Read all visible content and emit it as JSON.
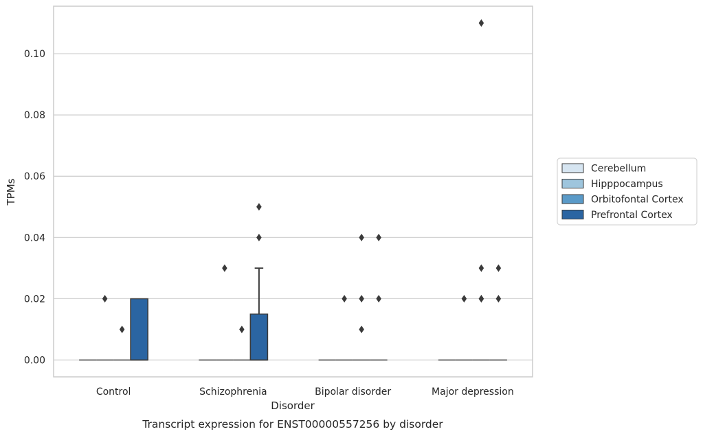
{
  "chart_data": {
    "type": "box",
    "title": "",
    "caption": "Transcript expression for ENST00000557256 by disorder",
    "xlabel": "Disorder",
    "ylabel": "TPMs",
    "ylim": [
      -0.0055,
      0.1155
    ],
    "yticks": [
      "0.00",
      "0.02",
      "0.04",
      "0.06",
      "0.08",
      "0.10"
    ],
    "ytick_values": [
      0,
      0.02,
      0.04,
      0.06,
      0.08,
      0.1
    ],
    "grid": "horizontal",
    "legend_position": "right",
    "categories": [
      "Control",
      "Schizophrenia",
      "Bipolar disorder",
      "Major depression"
    ],
    "series": [
      {
        "name": "Cerebellum",
        "color": "#d6e5f1",
        "boxes": [
          {
            "min": 0,
            "q1": 0,
            "median": 0,
            "q3": 0,
            "max": 0,
            "outliers": []
          },
          {
            "min": 0,
            "q1": 0,
            "median": 0,
            "q3": 0,
            "max": 0,
            "outliers": []
          },
          {
            "min": 0,
            "q1": 0,
            "median": 0,
            "q3": 0,
            "max": 0,
            "outliers": []
          },
          {
            "min": 0,
            "q1": 0,
            "median": 0,
            "q3": 0,
            "max": 0,
            "outliers": []
          }
        ]
      },
      {
        "name": "Hipppocampus",
        "color": "#9ec5dd",
        "boxes": [
          {
            "min": 0,
            "q1": 0,
            "median": 0,
            "q3": 0,
            "max": 0,
            "outliers": [
              0.02
            ]
          },
          {
            "min": 0,
            "q1": 0,
            "median": 0,
            "q3": 0,
            "max": 0,
            "outliers": [
              0.03
            ]
          },
          {
            "min": 0,
            "q1": 0,
            "median": 0,
            "q3": 0,
            "max": 0,
            "outliers": [
              0.02
            ]
          },
          {
            "min": 0,
            "q1": 0,
            "median": 0,
            "q3": 0,
            "max": 0,
            "outliers": [
              0.02
            ]
          }
        ]
      },
      {
        "name": "Orbitofontal Cortex",
        "color": "#5a9ac8",
        "boxes": [
          {
            "min": 0,
            "q1": 0,
            "median": 0,
            "q3": 0,
            "max": 0,
            "outliers": [
              0.01
            ]
          },
          {
            "min": 0,
            "q1": 0,
            "median": 0,
            "q3": 0,
            "max": 0,
            "outliers": [
              0.01
            ]
          },
          {
            "min": 0,
            "q1": 0,
            "median": 0,
            "q3": 0,
            "max": 0,
            "outliers": [
              0.04,
              0.02,
              0.01
            ]
          },
          {
            "min": 0,
            "q1": 0,
            "median": 0,
            "q3": 0,
            "max": 0,
            "outliers": [
              0.11,
              0.02,
              0.03,
              0.02
            ]
          }
        ]
      },
      {
        "name": "Prefrontal Cortex",
        "color": "#2b65a2",
        "boxes": [
          {
            "min": 0,
            "q1": 0,
            "median": 0,
            "q3": 0.02,
            "max": 0.02,
            "outliers": []
          },
          {
            "min": 0,
            "q1": 0,
            "median": 0,
            "q3": 0.015,
            "max": 0.03,
            "outliers": [
              0.05,
              0.04
            ]
          },
          {
            "min": 0,
            "q1": 0,
            "median": 0,
            "q3": 0,
            "max": 0,
            "outliers": [
              0.04,
              0.02
            ]
          },
          {
            "min": 0,
            "q1": 0,
            "median": 0,
            "q3": 0,
            "max": 0,
            "outliers": [
              0.03,
              0.02
            ]
          }
        ]
      }
    ]
  }
}
